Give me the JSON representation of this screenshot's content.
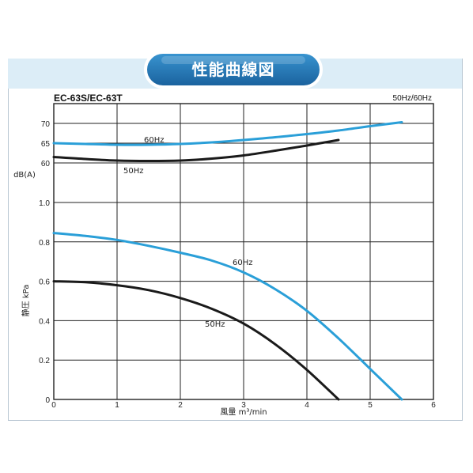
{
  "header": {
    "title": "性能曲線図",
    "model": "EC-63S/EC-63T",
    "freq_note": "50Hz/60Hz"
  },
  "colors": {
    "60hz": "#2a9fd8",
    "50hz": "#1a1a1a",
    "band": "#dcedf7",
    "pill": "#2279b8"
  },
  "chart_data": [
    {
      "type": "line",
      "title": "",
      "xlabel": "風量 m³/min",
      "ylabel": "dB(A)",
      "xlim": [
        0,
        6
      ],
      "ylim": [
        60,
        70
      ],
      "x_ticks": [
        "0",
        "1",
        "2",
        "3",
        "4",
        "5",
        "6"
      ],
      "y_ticks": [
        "60",
        "65",
        "70"
      ],
      "series": [
        {
          "name": "60Hz",
          "color": "#2a9fd8",
          "x": [
            0,
            0.5,
            1,
            1.5,
            2,
            2.5,
            3,
            3.5,
            4,
            4.5,
            5,
            5.5
          ],
          "y": [
            65,
            64.8,
            64.6,
            64.6,
            64.8,
            65.2,
            65.8,
            66.5,
            67.3,
            68.2,
            69.3,
            70.3
          ]
        },
        {
          "name": "50Hz",
          "color": "#1a1a1a",
          "x": [
            0,
            0.5,
            1,
            1.5,
            2,
            2.5,
            3,
            3.5,
            4,
            4.5
          ],
          "y": [
            61.5,
            61.0,
            60.6,
            60.5,
            60.6,
            61.1,
            61.9,
            63.1,
            64.4,
            65.8
          ]
        }
      ]
    },
    {
      "type": "line",
      "title": "",
      "xlabel": "風量 m³/min",
      "ylabel": "静圧 kPa",
      "xlim": [
        0,
        6
      ],
      "ylim": [
        0,
        1.0
      ],
      "x_ticks": [
        "0",
        "1",
        "2",
        "3",
        "4",
        "5",
        "6"
      ],
      "y_ticks": [
        "0",
        "0.2",
        "0.4",
        "0.6",
        "0.8",
        "1.0"
      ],
      "series": [
        {
          "name": "60Hz",
          "color": "#2a9fd8",
          "x": [
            0,
            0.5,
            1,
            1.5,
            2,
            2.5,
            3,
            3.5,
            4,
            4.5,
            5,
            5.5
          ],
          "y": [
            0.845,
            0.83,
            0.81,
            0.78,
            0.745,
            0.705,
            0.645,
            0.56,
            0.45,
            0.31,
            0.155,
            0.0
          ]
        },
        {
          "name": "50Hz",
          "color": "#1a1a1a",
          "x": [
            0,
            0.5,
            1,
            1.5,
            2,
            2.5,
            3,
            3.5,
            4,
            4.5
          ],
          "y": [
            0.6,
            0.595,
            0.58,
            0.555,
            0.515,
            0.46,
            0.385,
            0.28,
            0.15,
            0.0
          ]
        }
      ]
    }
  ]
}
